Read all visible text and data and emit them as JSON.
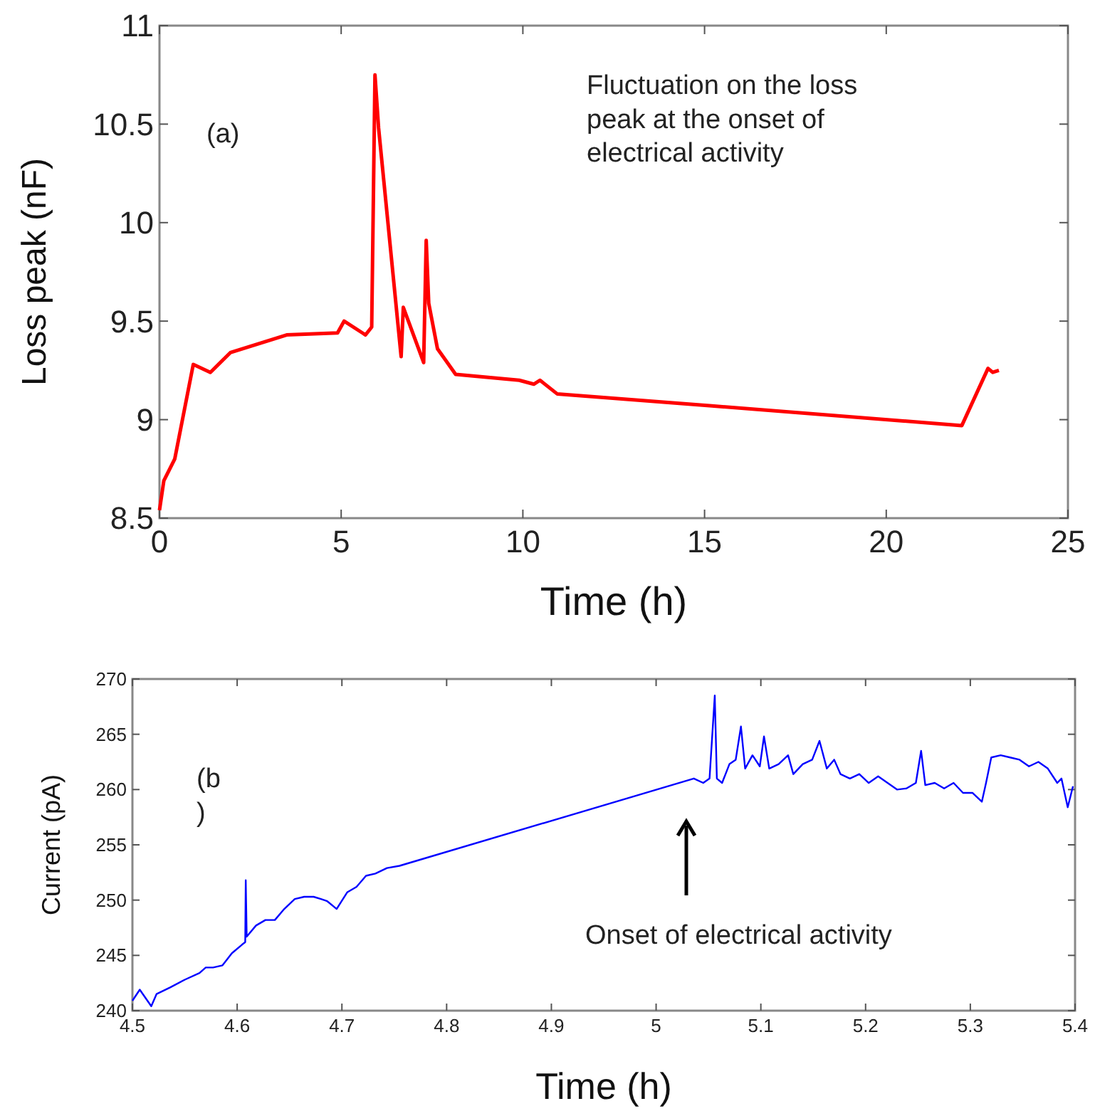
{
  "chart_data": [
    {
      "type": "line",
      "xlabel": "Time (h)",
      "ylabel": "Loss peak (nF)",
      "xlim": [
        0,
        25
      ],
      "xticks": [
        0,
        5,
        10,
        15,
        20,
        25
      ],
      "ylim": [
        8.5,
        11
      ],
      "yticks": [
        8.5,
        9,
        9.5,
        10,
        10.5,
        11
      ],
      "grid": false,
      "annotations": [
        "(a)",
        "Fluctuation on the loss peak at the onset of electrical activity"
      ],
      "series": [
        {
          "color": "#ff0000",
          "x": [
            0,
            0.12,
            0.42,
            0.93,
            1.4,
            1.95,
            3.5,
            4.9,
            5.08,
            5.67,
            5.84,
            5.93,
            6.03,
            6.65,
            6.71,
            7.27,
            7.34,
            7.41,
            7.65,
            8.15,
            9.9,
            10.3,
            10.47,
            10.95,
            15.2,
            22.08,
            22.8,
            22.93,
            23.1
          ],
          "values": [
            8.54,
            8.69,
            8.8,
            9.28,
            9.24,
            9.34,
            9.43,
            9.44,
            9.5,
            9.43,
            9.47,
            10.75,
            10.48,
            9.32,
            9.57,
            9.29,
            9.91,
            9.59,
            9.36,
            9.23,
            9.2,
            9.18,
            9.2,
            9.13,
            9.07,
            8.97,
            9.26,
            9.24,
            9.25
          ]
        }
      ]
    },
    {
      "type": "line",
      "xlabel": "Time (h)",
      "ylabel": "Current (pA)",
      "xlim": [
        4.5,
        5.4
      ],
      "xticks": [
        4.5,
        4.6,
        4.7,
        4.8,
        4.9,
        5,
        5.1,
        5.2,
        5.3,
        5.4
      ],
      "ylim": [
        240,
        270
      ],
      "yticks": [
        240,
        245,
        250,
        255,
        260,
        265,
        270
      ],
      "grid": false,
      "annotations": [
        "(b\n)",
        "Onset of electrical activity"
      ],
      "series": [
        {
          "color": "#0000ff",
          "x": [
            4.5,
            4.507,
            4.518,
            4.523,
            4.536,
            4.55,
            4.564,
            4.57,
            4.577,
            4.586,
            4.595,
            4.605,
            4.6077,
            4.6082,
            4.6091,
            4.618,
            4.627,
            4.636,
            4.645,
            4.655,
            4.664,
            4.673,
            4.68,
            4.686,
            4.695,
            4.705,
            4.714,
            4.723,
            4.732,
            4.743,
            4.755,
            5.036,
            5.045,
            5.051,
            5.056,
            5.058,
            5.063,
            5.07,
            5.076,
            5.081,
            5.085,
            5.092,
            5.099,
            5.103,
            5.108,
            5.117,
            5.126,
            5.131,
            5.14,
            5.149,
            5.156,
            5.163,
            5.17,
            5.176,
            5.185,
            5.194,
            5.203,
            5.212,
            5.221,
            5.23,
            5.239,
            5.248,
            5.253,
            5.257,
            5.266,
            5.275,
            5.284,
            5.293,
            5.302,
            5.311,
            5.315,
            5.32,
            5.329,
            5.338,
            5.347,
            5.356,
            5.365,
            5.374,
            5.383,
            5.387,
            5.393,
            5.398
          ],
          "values": [
            240.9,
            241.9,
            240.4,
            241.5,
            242.1,
            242.8,
            243.4,
            243.9,
            243.9,
            244.1,
            245.2,
            246,
            246.2,
            251.8,
            246.7,
            247.7,
            248.2,
            248.2,
            249.2,
            250.1,
            250.3,
            250.3,
            250.1,
            249.9,
            249.2,
            250.7,
            251.2,
            252.2,
            252.4,
            252.9,
            253.1,
            261,
            260.6,
            261,
            268.5,
            261,
            260.6,
            262.3,
            262.7,
            265.7,
            261.9,
            263.1,
            262.1,
            264.8,
            261.9,
            262.3,
            263.1,
            261.4,
            262.3,
            262.7,
            264.4,
            261.9,
            262.7,
            261.4,
            261,
            261.4,
            260.6,
            261.2,
            260.6,
            260,
            260.1,
            260.6,
            263.5,
            260.4,
            260.6,
            260.1,
            260.6,
            259.7,
            259.7,
            258.9,
            260.6,
            262.9,
            263.1,
            262.9,
            262.7,
            262.1,
            262.5,
            261.9,
            260.6,
            261,
            258.4,
            260.3
          ]
        }
      ]
    }
  ]
}
